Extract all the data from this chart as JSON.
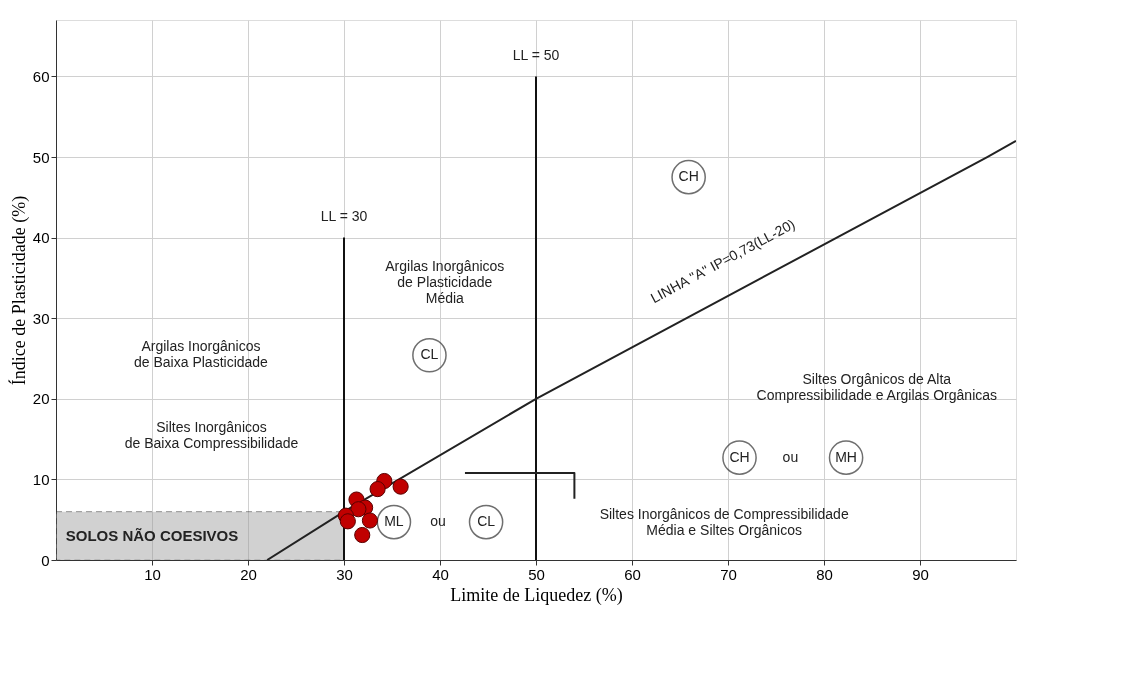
{
  "chart_data": {
    "type": "scatter",
    "xlabel": "Limite  de Liquedez (%)",
    "ylabel": "Índice de Plasticidade (%)",
    "xlim": [
      0,
      100
    ],
    "ylim": [
      0,
      67
    ],
    "xticks": [
      10,
      20,
      30,
      40,
      50,
      60,
      70,
      80,
      90
    ],
    "yticks": [
      0,
      10,
      20,
      30,
      40,
      50,
      60
    ],
    "grid": true,
    "series": [
      {
        "type": "area",
        "x": [
          0,
          22,
          30
        ],
        "values": [
          6,
          6,
          6
        ],
        "color": "#9a9a9a"
      },
      {
        "type": "line",
        "x": [
          30,
          30
        ],
        "values": [
          0,
          40
        ],
        "color": "#111111"
      },
      {
        "type": "line",
        "x": [
          50,
          50
        ],
        "values": [
          0,
          60
        ],
        "color": "#111111"
      },
      {
        "type": "line",
        "x": [
          22,
          30,
          50,
          97,
          100
        ],
        "values": [
          0,
          6,
          20,
          50,
          52
        ],
        "color": "#222222"
      },
      {
        "type": "line",
        "x": [
          54,
          54,
          42.6
        ],
        "values": [
          7.6,
          10.8,
          10.8
        ],
        "color": "#222222"
      },
      {
        "x": [
          38.9,
          65.9,
          35.2,
          44.8,
          71.2,
          82.3
        ],
        "values": [
          25.4,
          47.5,
          4.7,
          4.7,
          12.7,
          12.7
        ],
        "color": "#333333",
        "marker": "circle"
      },
      {
        "x": [
          34.2,
          33.5,
          35.9,
          31.3,
          32.2,
          31.5,
          30.2,
          30.4,
          32.7,
          31.9
        ],
        "values": [
          9.8,
          8.8,
          9.1,
          7.5,
          6.5,
          6.3,
          5.5,
          4.8,
          4.9,
          3.1
        ],
        "color": "#c00000",
        "marker": "circle"
      }
    ],
    "annotations": [
      "LL = 30",
      "LL = 50",
      "Argilas Inorgânicos\nde Plasticidade\nMédia",
      "Argilas Inorgânicos\nde Baixa Plasticidade",
      "Siltes Inorgânicos\nde Baixa Compressibilidade",
      "Siltes Orgânicos de Alta\nCompressibilidade e Argilas Orgânicas",
      "LINHA \"A\" IP=0,73(LL-20)",
      {
        "text": "CL",
        "x": 38.9,
        "y": 25.4
      },
      {
        "text": "CH",
        "x": 65.9,
        "y": 47.5
      },
      {
        "text": "ML",
        "x": 35.2,
        "y": 4.7
      },
      "ou",
      {
        "text": "CL",
        "x": 44.8,
        "y": 4.7
      },
      {
        "text": "CH",
        "x": 71.2,
        "y": 12.7
      },
      "ou",
      {
        "text": "MH",
        "x": 82.3,
        "y": 12.7
      },
      "Siltes Inorgânicos de Compressibilidade\nMédia e Siltes Orgânicos",
      "SOLOS NÃO COESIVOS"
    ]
  }
}
